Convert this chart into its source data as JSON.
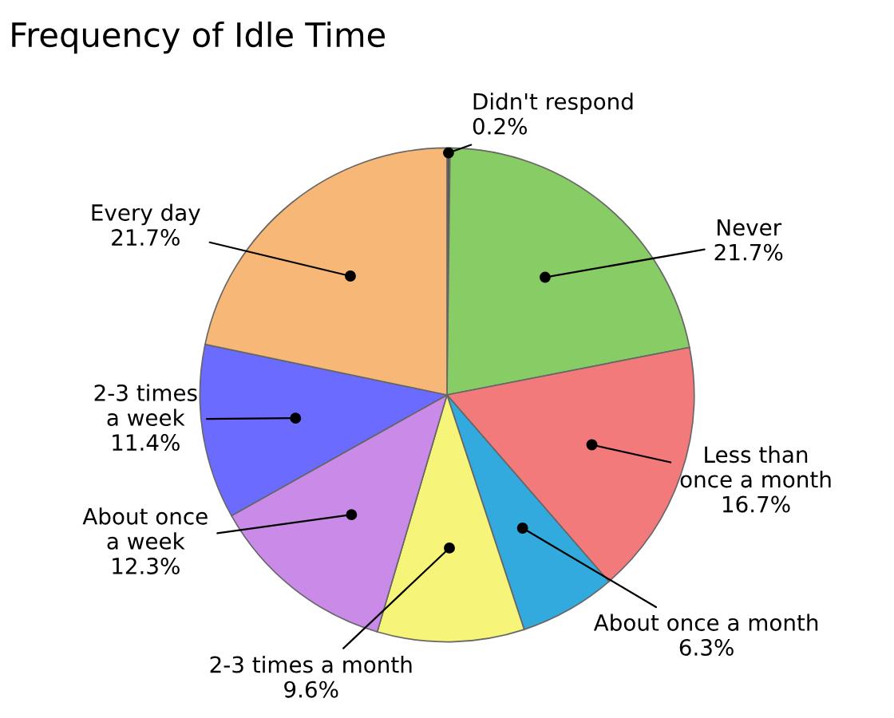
{
  "chart_data": {
    "type": "pie",
    "title": "Frequency of Idle Time",
    "categories": [
      "Didn't respond",
      "Never",
      "Less than\nonce a month",
      "About once a month",
      "2-3 times a month",
      "About once\na week",
      "2-3 times\na week",
      "Every day"
    ],
    "values": [
      0.2,
      21.7,
      16.7,
      6.3,
      9.6,
      12.3,
      11.4,
      21.7
    ],
    "value_labels": [
      "0.2%",
      "21.7%",
      "16.7%",
      "6.3%",
      "9.6%",
      "12.3%",
      "11.4%",
      "21.7%"
    ],
    "colors": [
      "#555555",
      "#88cc66",
      "#f27a7a",
      "#33aadd",
      "#f6f57a",
      "#c98ae8",
      "#6b6bff",
      "#f7b877"
    ]
  }
}
